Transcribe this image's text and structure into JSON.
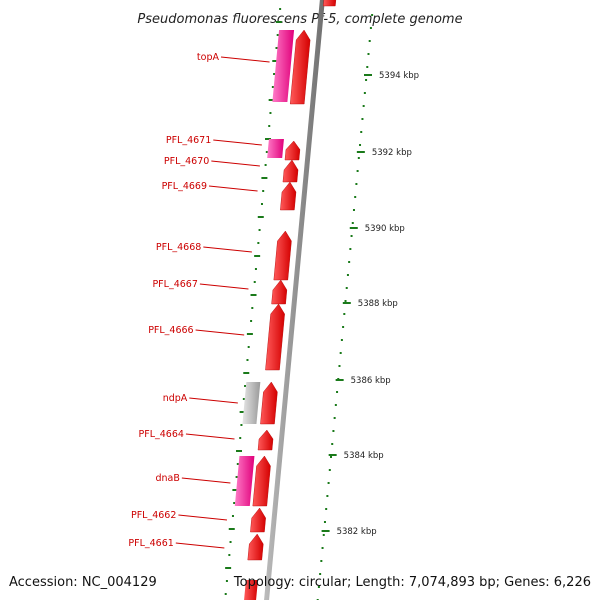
{
  "title": "Pseudomonas fluorescens Pf-5, complete genome",
  "footer": {
    "accession": "Accession: NC_004129",
    "topology": "Topology: circular; Length: 7,074,893 bp; Genes: 6,226"
  },
  "colors": {
    "backbone": "#8a8a8a",
    "cds_red": "#ff1a1a",
    "cds_pink": "#ff1493",
    "cds_grey": "#bdbdbd",
    "label_red": "#cc0000",
    "gc_green": "#1a7a1a"
  },
  "scale": {
    "unit": "kbp",
    "ticks": [
      {
        "label": "5394 kbp"
      },
      {
        "label": "5392 kbp"
      },
      {
        "label": "5390 kbp"
      },
      {
        "label": "5388 kbp"
      },
      {
        "label": "5386 kbp"
      },
      {
        "label": "5384 kbp"
      },
      {
        "label": "5382 kbp"
      }
    ]
  },
  "genes": [
    {
      "label": "topA"
    },
    {
      "label": "PFL_4671"
    },
    {
      "label": "PFL_4670"
    },
    {
      "label": "PFL_4669"
    },
    {
      "label": "PFL_4668"
    },
    {
      "label": "PFL_4667"
    },
    {
      "label": "PFL_4666"
    },
    {
      "label": "ndpA"
    },
    {
      "label": "PFL_4664"
    },
    {
      "label": "dnaB"
    },
    {
      "label": "PFL_4662"
    },
    {
      "label": "PFL_4661"
    }
  ]
}
